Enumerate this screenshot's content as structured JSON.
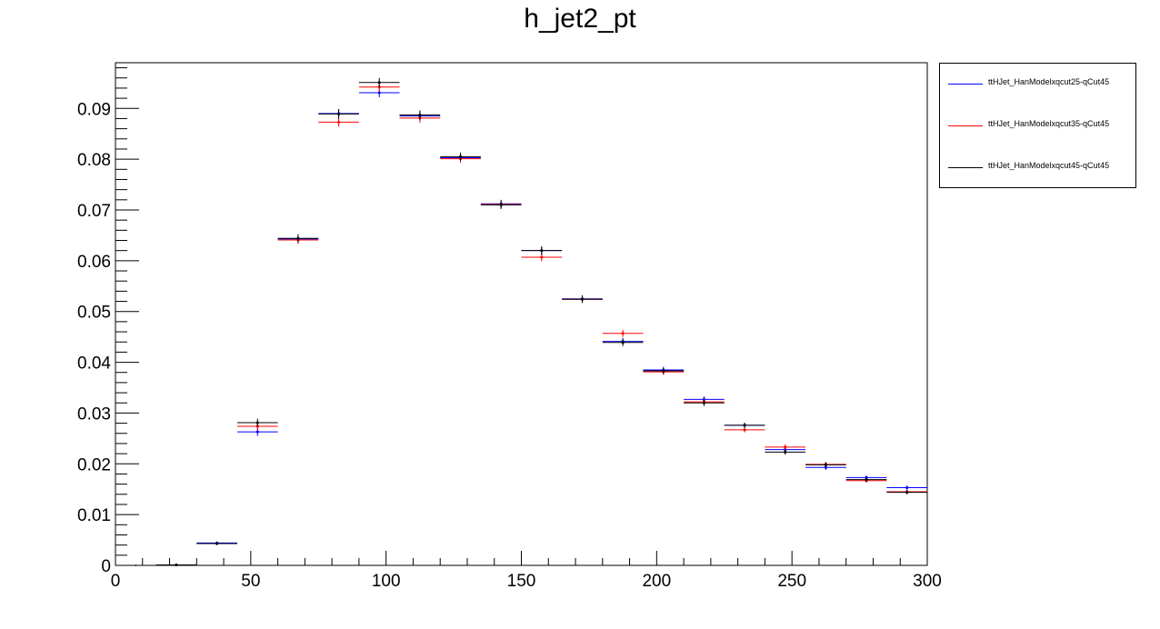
{
  "chart_data": {
    "type": "scatter",
    "title": "h_jet2_pt",
    "xlabel": "",
    "ylabel": "",
    "xlim": [
      0,
      300
    ],
    "ylim": [
      0,
      0.099
    ],
    "grid": false,
    "legend_position": "right",
    "bin_width": 15,
    "x": [
      7.5,
      22.5,
      37.5,
      52.5,
      67.5,
      82.5,
      97.5,
      112.5,
      127.5,
      142.5,
      157.5,
      172.5,
      187.5,
      202.5,
      217.5,
      232.5,
      247.5,
      262.5,
      277.5,
      292.5
    ],
    "series": [
      {
        "name": "ttHJet_HanModelxqcut25-qCut45",
        "color": "#0000ff",
        "values": [
          0,
          0.0001,
          0.0044,
          0.0263,
          0.0643,
          0.089,
          0.0931,
          0.0885,
          0.0803,
          0.0712,
          0.062,
          0.0525,
          0.0441,
          0.0385,
          0.0327,
          0.0276,
          0.0228,
          0.0193,
          0.0173,
          0.0153
        ],
        "errors": [
          0,
          0.0001,
          0.0003,
          0.0008,
          0.0008,
          0.0009,
          0.0009,
          0.0009,
          0.0008,
          0.0008,
          0.0008,
          0.0007,
          0.0007,
          0.0006,
          0.0006,
          0.0005,
          0.0005,
          0.0005,
          0.0004,
          0.0004
        ]
      },
      {
        "name": "ttHJet_HanModelxqcut35-qCut45",
        "color": "#ff0000",
        "values": [
          0,
          0.0001,
          0.0043,
          0.0274,
          0.0641,
          0.0873,
          0.0942,
          0.0881,
          0.0801,
          0.0711,
          0.0607,
          0.0524,
          0.0457,
          0.0381,
          0.0322,
          0.0267,
          0.0233,
          0.0199,
          0.0167,
          0.0145
        ],
        "errors": [
          0,
          0.0001,
          0.0003,
          0.0008,
          0.0008,
          0.0009,
          0.0009,
          0.0009,
          0.0008,
          0.0008,
          0.0008,
          0.0007,
          0.0007,
          0.0006,
          0.0006,
          0.0005,
          0.0005,
          0.0005,
          0.0004,
          0.0004
        ]
      },
      {
        "name": "ttHJet_HanModelxqcut45-qCut45",
        "color": "#000000",
        "values": [
          0,
          0.0001,
          0.0043,
          0.0281,
          0.0644,
          0.0889,
          0.0951,
          0.0887,
          0.0805,
          0.071,
          0.062,
          0.0524,
          0.0439,
          0.0383,
          0.032,
          0.0276,
          0.0223,
          0.0198,
          0.0169,
          0.0144
        ],
        "errors": [
          0,
          0.0001,
          0.0003,
          0.0008,
          0.0008,
          0.0009,
          0.0009,
          0.0009,
          0.0008,
          0.0008,
          0.0008,
          0.0007,
          0.0007,
          0.0006,
          0.0006,
          0.0005,
          0.0005,
          0.0005,
          0.0004,
          0.0004
        ]
      }
    ],
    "x_ticks": [
      0,
      50,
      100,
      150,
      200,
      250,
      300
    ],
    "x_tick_labels": [
      "0",
      "50",
      "100",
      "150",
      "200",
      "250",
      "300"
    ],
    "y_ticks": [
      0,
      0.01,
      0.02,
      0.03,
      0.04,
      0.05,
      0.06,
      0.07,
      0.08,
      0.09
    ],
    "y_tick_labels": [
      "0",
      "0.01",
      "0.02",
      "0.03",
      "0.04",
      "0.05",
      "0.06",
      "0.07",
      "0.08",
      "0.09"
    ]
  }
}
